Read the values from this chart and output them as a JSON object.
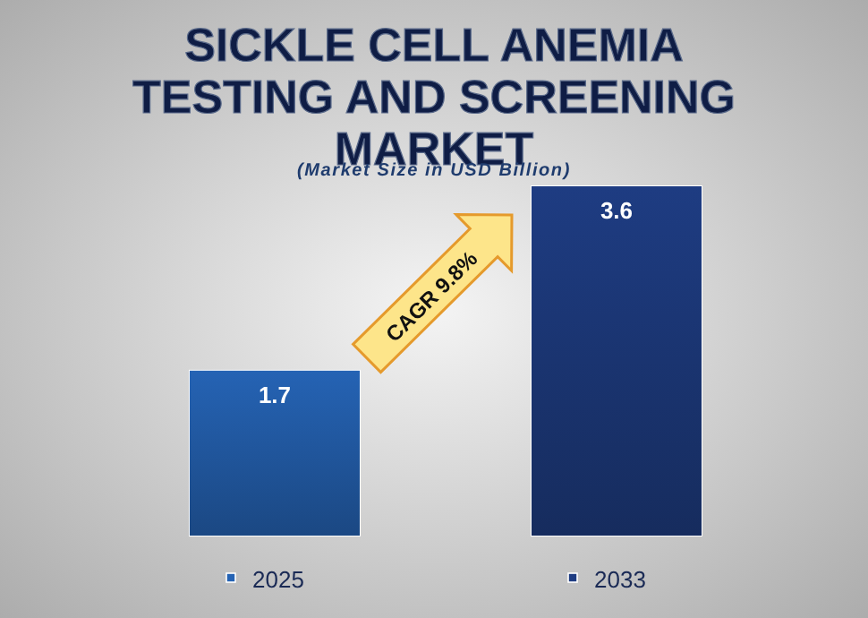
{
  "chart_data": {
    "type": "bar",
    "title": "SICKLE CELL ANEMIA TESTING AND SCREENING MARKET",
    "subtitle": "(Market Size in USD Billion)",
    "categories": [
      "2025",
      "2033"
    ],
    "values": [
      1.7,
      3.6
    ],
    "colors": [
      "#2563b4",
      "#1e3c82"
    ],
    "data_labels": true,
    "annotations": [
      "CAGR 9.8%"
    ]
  }
}
